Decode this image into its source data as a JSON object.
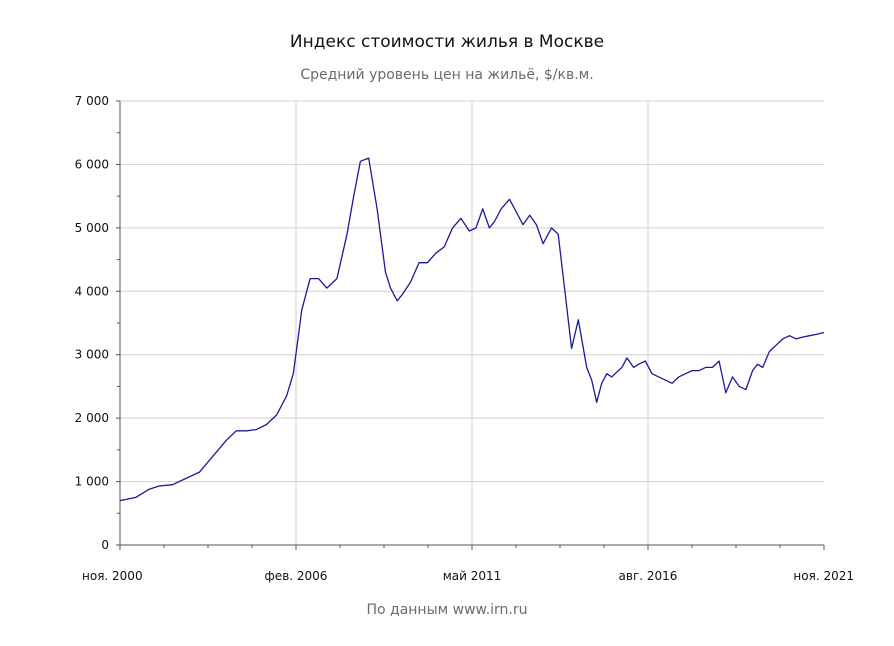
{
  "chart_data": {
    "type": "line",
    "title": "Индекс стоимости жилья в Москве",
    "subtitle": "Средний уровень цен на жильё, $/кв.м.",
    "source": "По данным www.irn.ru",
    "xlabel": "",
    "ylabel": "",
    "ylim": [
      0,
      7000
    ],
    "xlim": [
      2000.83,
      2021.83
    ],
    "y_ticks": [
      0,
      1000,
      2000,
      3000,
      4000,
      5000,
      6000,
      7000
    ],
    "y_tick_labels": [
      "0",
      "1 000",
      "2 000",
      "3 000",
      "4 000",
      "5 000",
      "6 000",
      "7 000"
    ],
    "x_ticks": [
      {
        "value": 2000.83,
        "label": "ноя. 2000"
      },
      {
        "value": 2006.08,
        "label": "фев. 2006"
      },
      {
        "value": 2011.33,
        "label": "май 2011"
      },
      {
        "value": 2016.58,
        "label": "авг. 2016"
      },
      {
        "value": 2021.83,
        "label": "ноя. 2021"
      }
    ],
    "grid": true,
    "legend": "none",
    "series": [
      {
        "color": "#1a1a99",
        "x": [
          2000.83,
          2001.3,
          2001.7,
          2002.0,
          2002.4,
          2002.8,
          2003.2,
          2003.6,
          2004.0,
          2004.3,
          2004.6,
          2004.9,
          2005.2,
          2005.5,
          2005.8,
          2006.0,
          2006.1,
          2006.25,
          2006.5,
          2006.75,
          2007.0,
          2007.3,
          2007.6,
          2007.8,
          2008.0,
          2008.25,
          2008.5,
          2008.75,
          2008.9,
          2009.1,
          2009.25,
          2009.5,
          2009.75,
          2010.0,
          2010.25,
          2010.5,
          2010.75,
          2011.0,
          2011.25,
          2011.45,
          2011.65,
          2011.85,
          2012.0,
          2012.2,
          2012.45,
          2012.65,
          2012.85,
          2013.05,
          2013.25,
          2013.45,
          2013.7,
          2013.9,
          2014.1,
          2014.3,
          2014.5,
          2014.75,
          2014.9,
          2015.05,
          2015.2,
          2015.35,
          2015.5,
          2015.6,
          2015.8,
          2015.95,
          2016.15,
          2016.3,
          2016.5,
          2016.7,
          2016.9,
          2017.1,
          2017.3,
          2017.5,
          2017.7,
          2017.9,
          2018.1,
          2018.3,
          2018.5,
          2018.7,
          2018.9,
          2019.1,
          2019.3,
          2019.5,
          2019.7,
          2019.85,
          2020.0,
          2020.2,
          2020.4,
          2020.6,
          2020.8,
          2021.0,
          2021.2,
          2021.4,
          2021.6,
          2021.83
        ],
        "y": [
          700,
          750,
          880,
          930,
          950,
          1050,
          1150,
          1400,
          1650,
          1800,
          1800,
          1820,
          1900,
          2050,
          2350,
          2700,
          3100,
          3700,
          4200,
          4200,
          4050,
          4200,
          4900,
          5500,
          6050,
          6100,
          5300,
          4300,
          4050,
          3850,
          3950,
          4150,
          4450,
          4450,
          4600,
          4700,
          5000,
          5150,
          4950,
          5000,
          5300,
          5000,
          5100,
          5300,
          5450,
          5250,
          5050,
          5200,
          5050,
          4750,
          5000,
          4900,
          4000,
          3100,
          3550,
          2800,
          2600,
          2250,
          2550,
          2700,
          2650,
          2700,
          2800,
          2950,
          2800,
          2850,
          2900,
          2700,
          2650,
          2600,
          2550,
          2650,
          2700,
          2750,
          2750,
          2800,
          2800,
          2900,
          2400,
          2650,
          2500,
          2450,
          2750,
          2850,
          2800,
          3050,
          3150,
          3250,
          3300,
          3250,
          3280,
          3300,
          3320,
          3350
        ]
      }
    ]
  }
}
